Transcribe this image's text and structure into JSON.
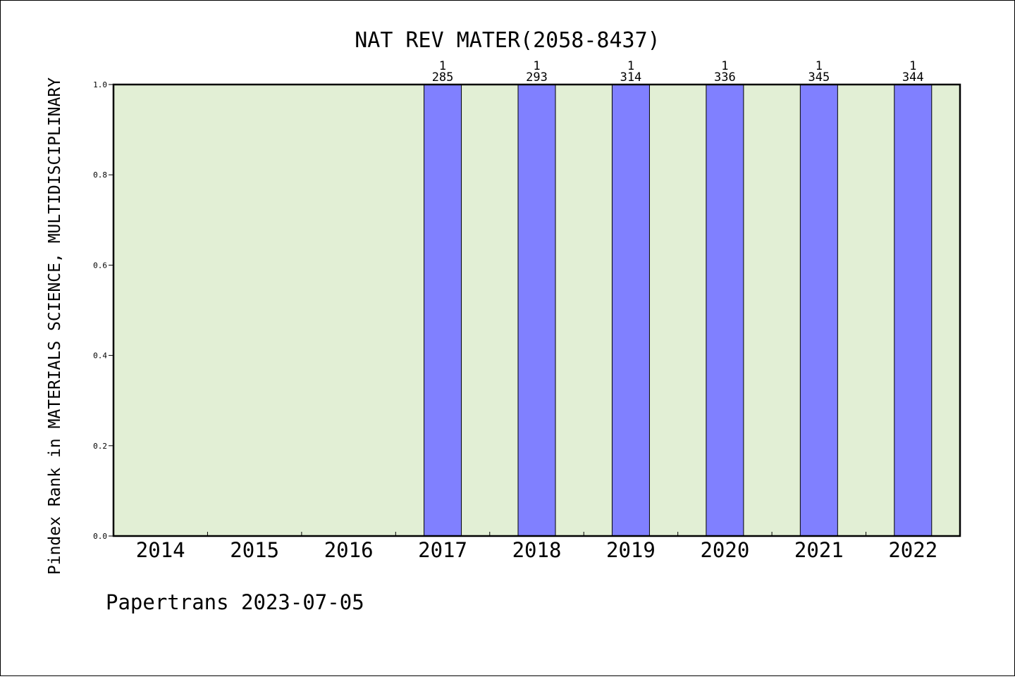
{
  "chart_data": {
    "type": "bar",
    "title": "NAT REV MATER(2058-8437)",
    "ylabel": "Pindex Rank in MATERIALS SCIENCE, MULTIDISCIPLINARY",
    "xlabel": "",
    "categories": [
      "2014",
      "2015",
      "2016",
      "2017",
      "2018",
      "2019",
      "2020",
      "2021",
      "2022"
    ],
    "values": [
      null,
      null,
      null,
      1,
      1,
      1,
      1,
      1,
      1
    ],
    "rank_labels": [
      "",
      "",
      "",
      "1",
      "1",
      "1",
      "1",
      "1",
      "1"
    ],
    "total_labels": [
      "",
      "",
      "",
      "285",
      "293",
      "314",
      "336",
      "345",
      "344"
    ],
    "ylim": [
      0,
      1
    ],
    "yticks": [
      "0.0",
      "0.2",
      "0.4",
      "0.6",
      "0.8",
      "1.0"
    ],
    "grid": false,
    "colors": {
      "plot_bg": "#e2efd5",
      "bar": "#8080ff",
      "axis": "#000000"
    }
  },
  "footer": {
    "text": "Papertrans 2023-07-05"
  }
}
